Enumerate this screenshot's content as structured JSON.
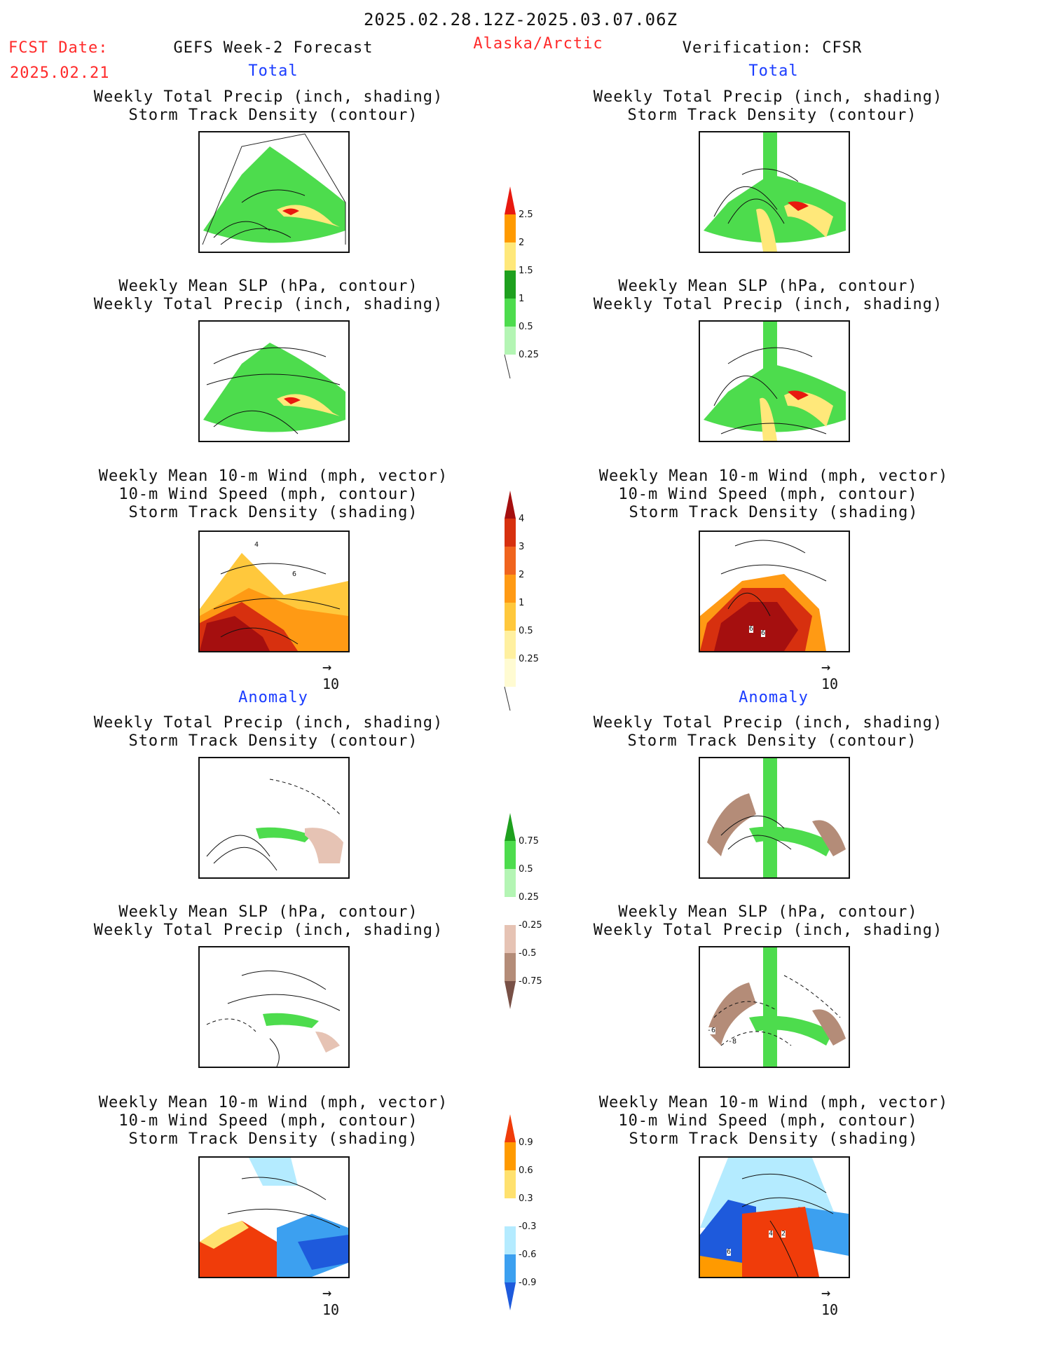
{
  "header": {
    "date_range": "2025.02.28.12Z-2025.03.07.06Z",
    "fcst_label": "FCST Date:",
    "fcst_date": "2025.02.21",
    "left_title": "GEFS Week-2 Forecast",
    "region": "Alaska/Arctic",
    "right_title": "Verification: CFSR"
  },
  "sections": {
    "total": "Total",
    "anomaly": "Anomaly"
  },
  "panel_titles": {
    "precip_track": [
      "Weekly Total Precip (inch, shading)",
      "Storm Track Density (contour)"
    ],
    "slp_precip": [
      "Weekly Mean SLP (hPa, contour)",
      "Weekly Total Precip (inch, shading)"
    ],
    "wind_track": [
      "Weekly Mean 10-m Wind (mph, vector)",
      "10-m Wind Speed (mph, contour)",
      "Storm Track Density (shading)"
    ]
  },
  "vector_key": "10",
  "colorbars": {
    "precip_total": {
      "labels": [
        "2.5",
        "2",
        "1.5",
        "1",
        "0.5",
        "0.25"
      ],
      "colors": [
        "#e8190f",
        "#ff9a00",
        "#ffe87a",
        "#1ea01e",
        "#4ddc4d",
        "#b4f5b4"
      ]
    },
    "track_total": {
      "labels": [
        "4",
        "3",
        "2",
        "1",
        "0.5",
        "0.25"
      ],
      "colors": [
        "#a50f0f",
        "#d7300f",
        "#f0641e",
        "#ff9a14",
        "#ffc83c",
        "#fff0a0",
        "#fffbd2"
      ]
    },
    "precip_anom": {
      "labels": [
        "0.75",
        "0.5",
        "0.25",
        "-0.25",
        "-0.5",
        "-0.75"
      ],
      "colors": [
        "#1ea01e",
        "#4ddc4d",
        "#b4f5b4",
        "#ffffff",
        "#e6c3b4",
        "#b48c78",
        "#785046"
      ]
    },
    "track_anom": {
      "labels": [
        "0.9",
        "0.6",
        "0.3",
        "-0.3",
        "-0.6",
        "-0.9"
      ],
      "colors": [
        "#f03c0a",
        "#ff9a00",
        "#ffe16e",
        "#ffffff",
        "#b4ebff",
        "#3ca0f0",
        "#1e5adc"
      ]
    }
  },
  "contour_labels": {
    "left_wind_total": [
      "4",
      "6"
    ],
    "right_wind_total": [
      "6",
      "6"
    ],
    "right_slp_anom": [
      "-6",
      "-8"
    ],
    "right_wind_anom": [
      "4",
      "2",
      "6"
    ]
  }
}
